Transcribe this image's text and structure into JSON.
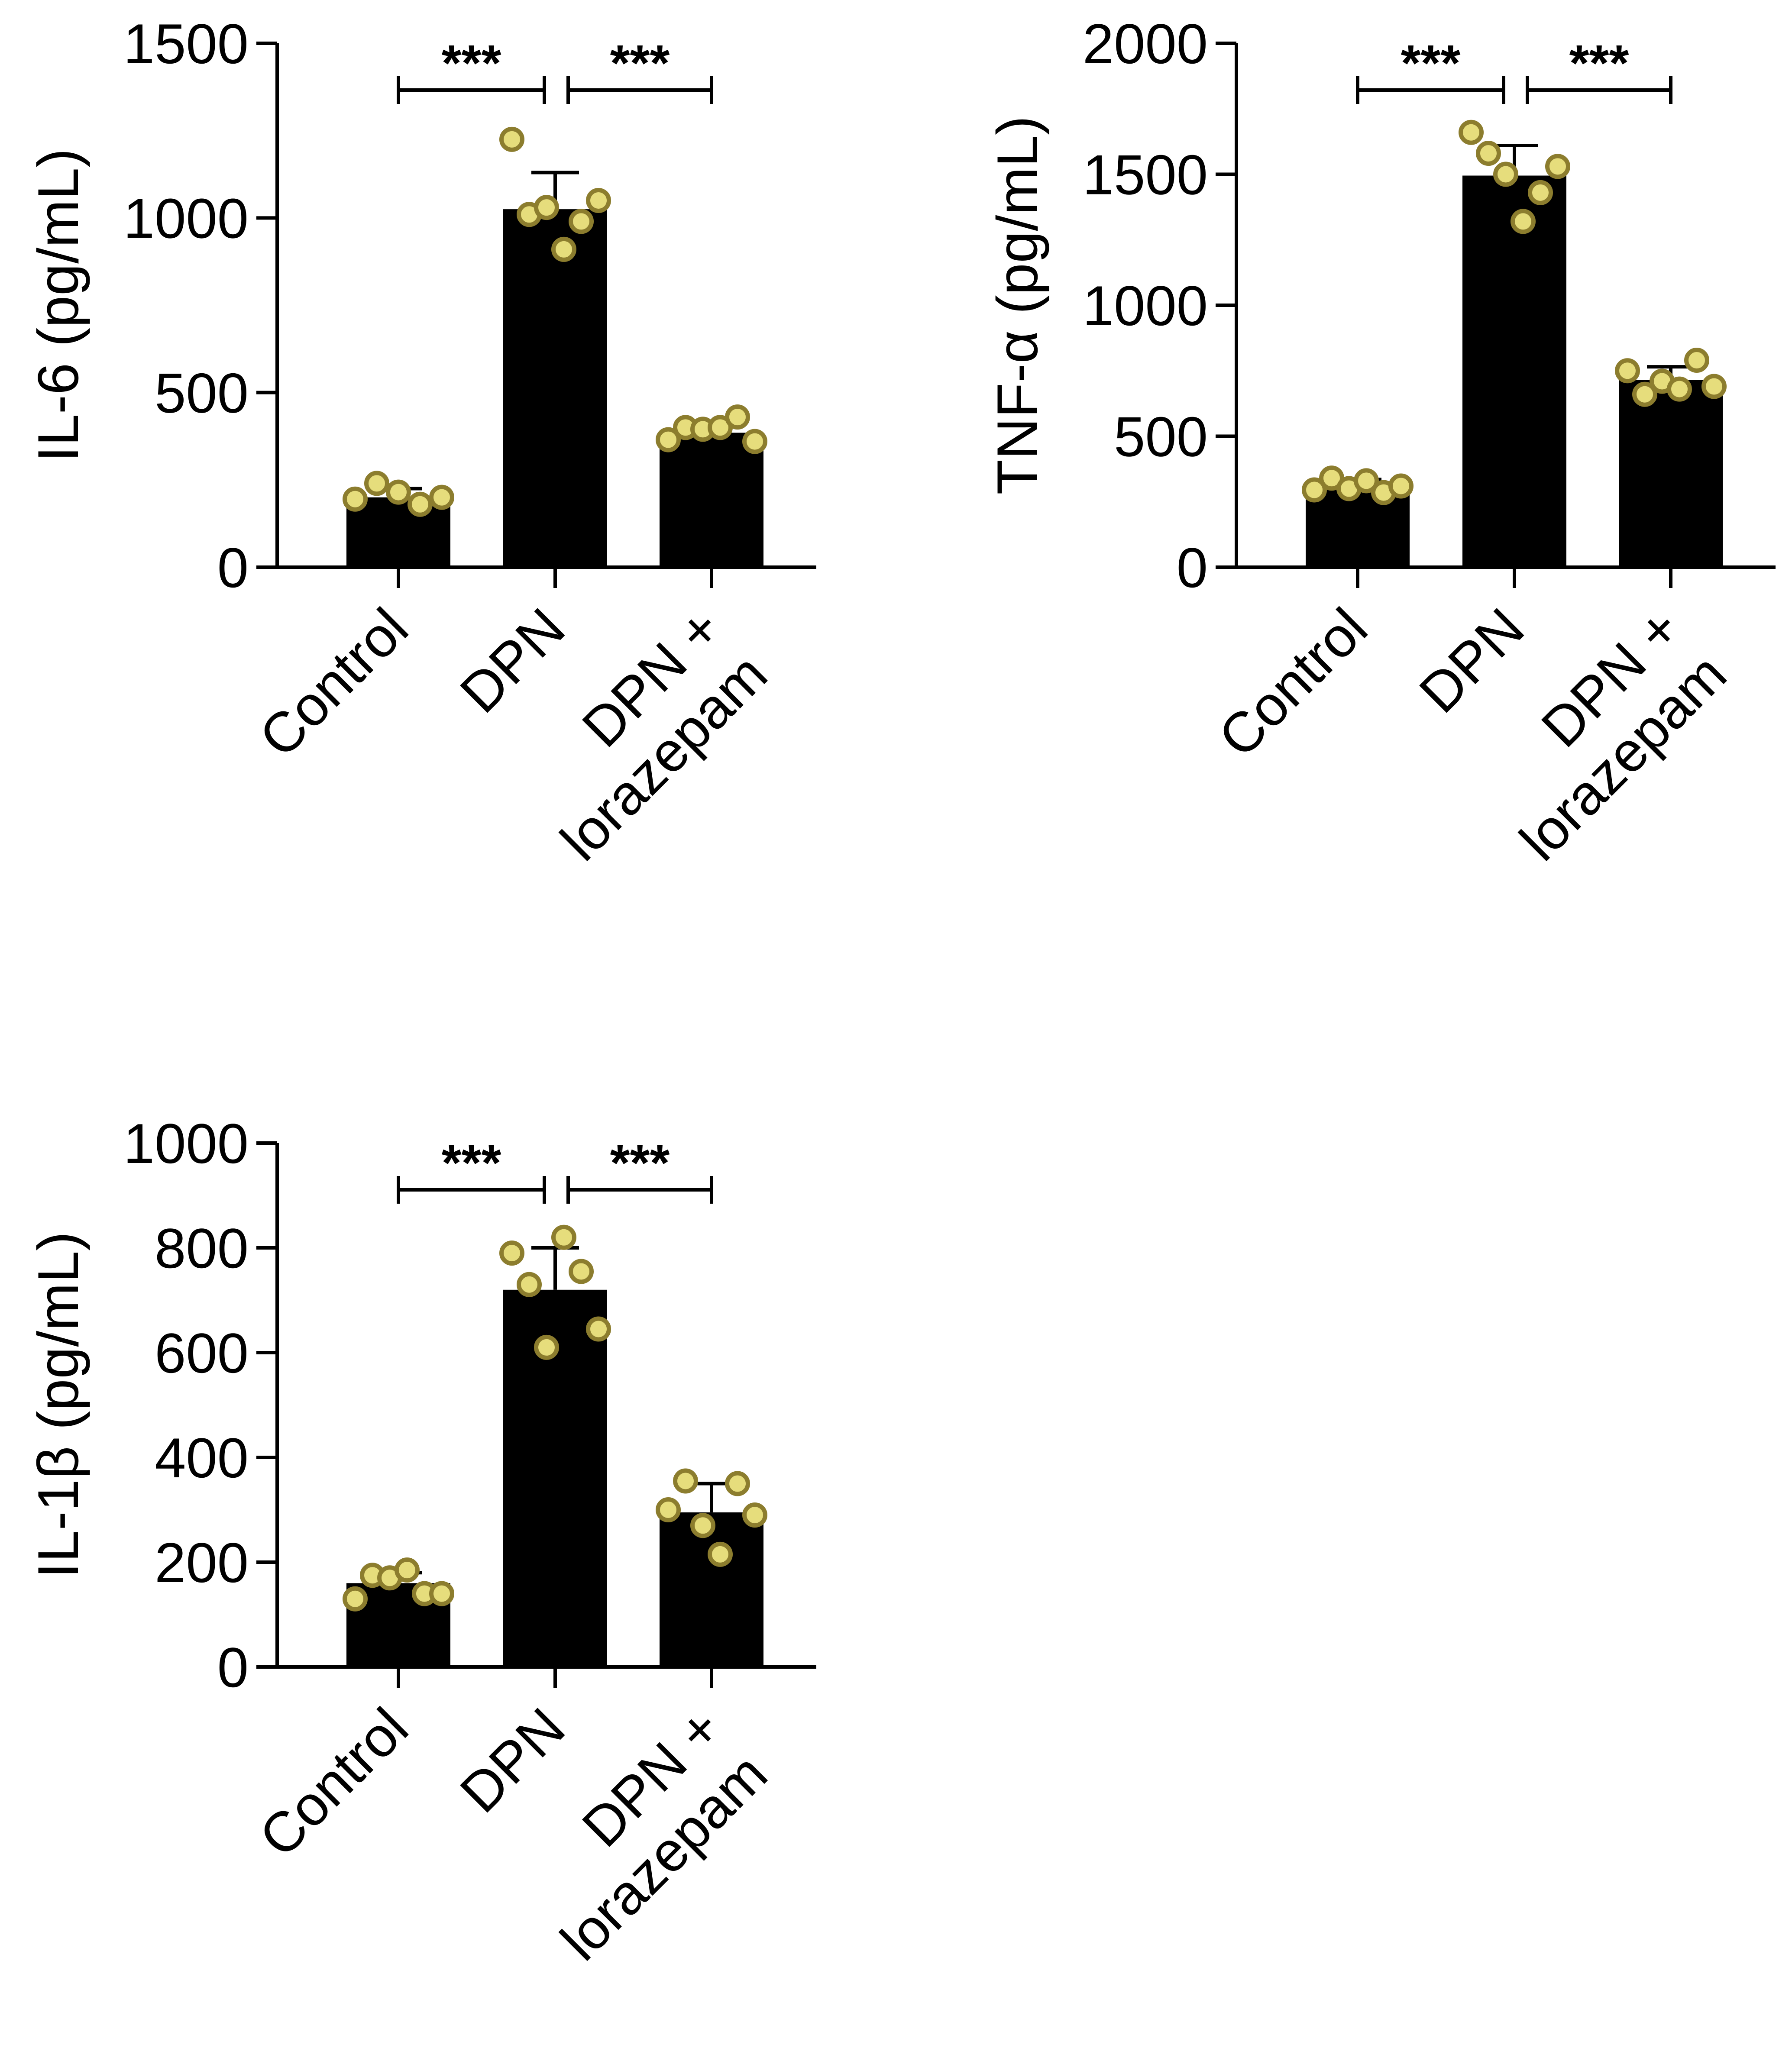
{
  "colors": {
    "bar": "#000000",
    "point_fill": "#e6dd7c",
    "point_stroke": "#8c7d2e",
    "axis": "#000000"
  },
  "chart_data": [
    {
      "type": "bar",
      "ylabel": "IL-6 (pg/mL)",
      "categories": [
        [
          "Control"
        ],
        [
          "DPN"
        ],
        [
          "DPN +",
          "lorazepam"
        ]
      ],
      "ylim": [
        0,
        1500
      ],
      "yticks": [
        "0",
        "500",
        "1000",
        "1500"
      ],
      "values": [
        200,
        1025,
        385
      ],
      "error": [
        25,
        105,
        22
      ],
      "points": [
        [
          195,
          240,
          215,
          180,
          200
        ],
        [
          1225,
          1010,
          1030,
          910,
          990,
          1050
        ],
        [
          365,
          400,
          395,
          400,
          430,
          360
        ]
      ],
      "significance": [
        {
          "from": 0,
          "to": 1,
          "label": "***"
        },
        {
          "from": 1,
          "to": 2,
          "label": "***"
        }
      ]
    },
    {
      "type": "bar",
      "ylabel": "TNF-α (pg/mL)",
      "categories": [
        [
          "Control"
        ],
        [
          "DPN"
        ],
        [
          "DPN +",
          "lorazepam"
        ]
      ],
      "ylim": [
        0,
        2000
      ],
      "yticks": [
        "0",
        "500",
        "1000",
        "1500",
        "2000"
      ],
      "values": [
        310,
        1495,
        715
      ],
      "error": [
        25,
        115,
        50
      ],
      "points": [
        [
          295,
          340,
          300,
          330,
          285,
          310
        ],
        [
          1660,
          1580,
          1500,
          1320,
          1430,
          1530
        ],
        [
          750,
          660,
          710,
          680,
          790,
          690
        ]
      ],
      "significance": [
        {
          "from": 0,
          "to": 1,
          "label": "***"
        },
        {
          "from": 1,
          "to": 2,
          "label": "***"
        }
      ]
    },
    {
      "type": "bar",
      "ylabel": "IL-1β (pg/mL)",
      "categories": [
        [
          "Control"
        ],
        [
          "DPN"
        ],
        [
          "DPN +",
          "lorazepam"
        ]
      ],
      "ylim": [
        0,
        1000
      ],
      "yticks": [
        "0",
        "200",
        "400",
        "600",
        "800",
        "1000"
      ],
      "values": [
        160,
        720,
        295
      ],
      "error": [
        20,
        80,
        55
      ],
      "points": [
        [
          130,
          175,
          170,
          185,
          140,
          140
        ],
        [
          790,
          730,
          610,
          820,
          755,
          645
        ],
        [
          300,
          355,
          270,
          215,
          350,
          290
        ]
      ],
      "significance": [
        {
          "from": 0,
          "to": 1,
          "label": "***"
        },
        {
          "from": 1,
          "to": 2,
          "label": "***"
        }
      ]
    }
  ]
}
